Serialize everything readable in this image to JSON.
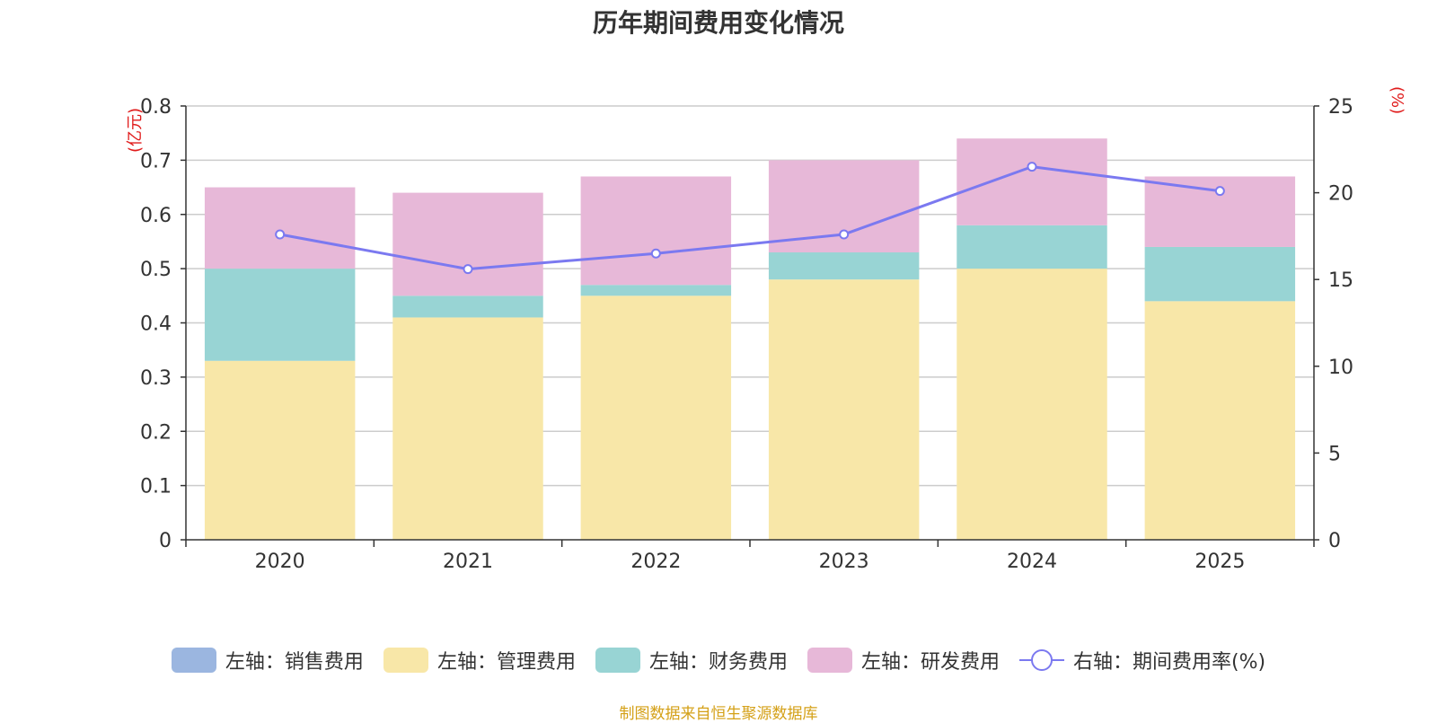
{
  "chart_data": {
    "type": "bar",
    "title": "历年期间费用变化情况",
    "categories": [
      "2020",
      "2021",
      "2022",
      "2023",
      "2024",
      "2025"
    ],
    "stacked": true,
    "left_axis": {
      "unit_label": "(亿元)",
      "ylim": [
        0,
        0.8
      ],
      "ticks": [
        "0",
        "0.1",
        "0.2",
        "0.3",
        "0.4",
        "0.5",
        "0.6",
        "0.7",
        "0.8"
      ]
    },
    "right_axis": {
      "unit_label": "(%)",
      "ylim": [
        0,
        25
      ],
      "ticks": [
        "0",
        "5",
        "10",
        "15",
        "20",
        "25"
      ]
    },
    "series": [
      {
        "name": "左轴：销售费用",
        "type": "bar",
        "axis": "left",
        "color": "#9bb6e0",
        "values": [
          0,
          0,
          0,
          0,
          0,
          0
        ]
      },
      {
        "name": "左轴：管理费用",
        "type": "bar",
        "axis": "left",
        "color": "#f8e7a8",
        "values": [
          0.33,
          0.41,
          0.45,
          0.48,
          0.5,
          0.44
        ]
      },
      {
        "name": "左轴：财务费用",
        "type": "bar",
        "axis": "left",
        "color": "#98d4d4",
        "values": [
          0.17,
          0.04,
          0.02,
          0.05,
          0.08,
          0.1
        ]
      },
      {
        "name": "左轴：研发费用",
        "type": "bar",
        "axis": "left",
        "color": "#e7b8d8",
        "values": [
          0.15,
          0.19,
          0.2,
          0.17,
          0.16,
          0.13
        ]
      },
      {
        "name": "右轴：期间费用率(%)",
        "type": "line",
        "axis": "right",
        "color": "#7b79f0",
        "values": [
          17.6,
          15.6,
          16.5,
          17.6,
          21.5,
          20.1
        ]
      }
    ],
    "grid": true,
    "legend_position": "bottom",
    "source_note": "制图数据来自恒生聚源数据库"
  }
}
